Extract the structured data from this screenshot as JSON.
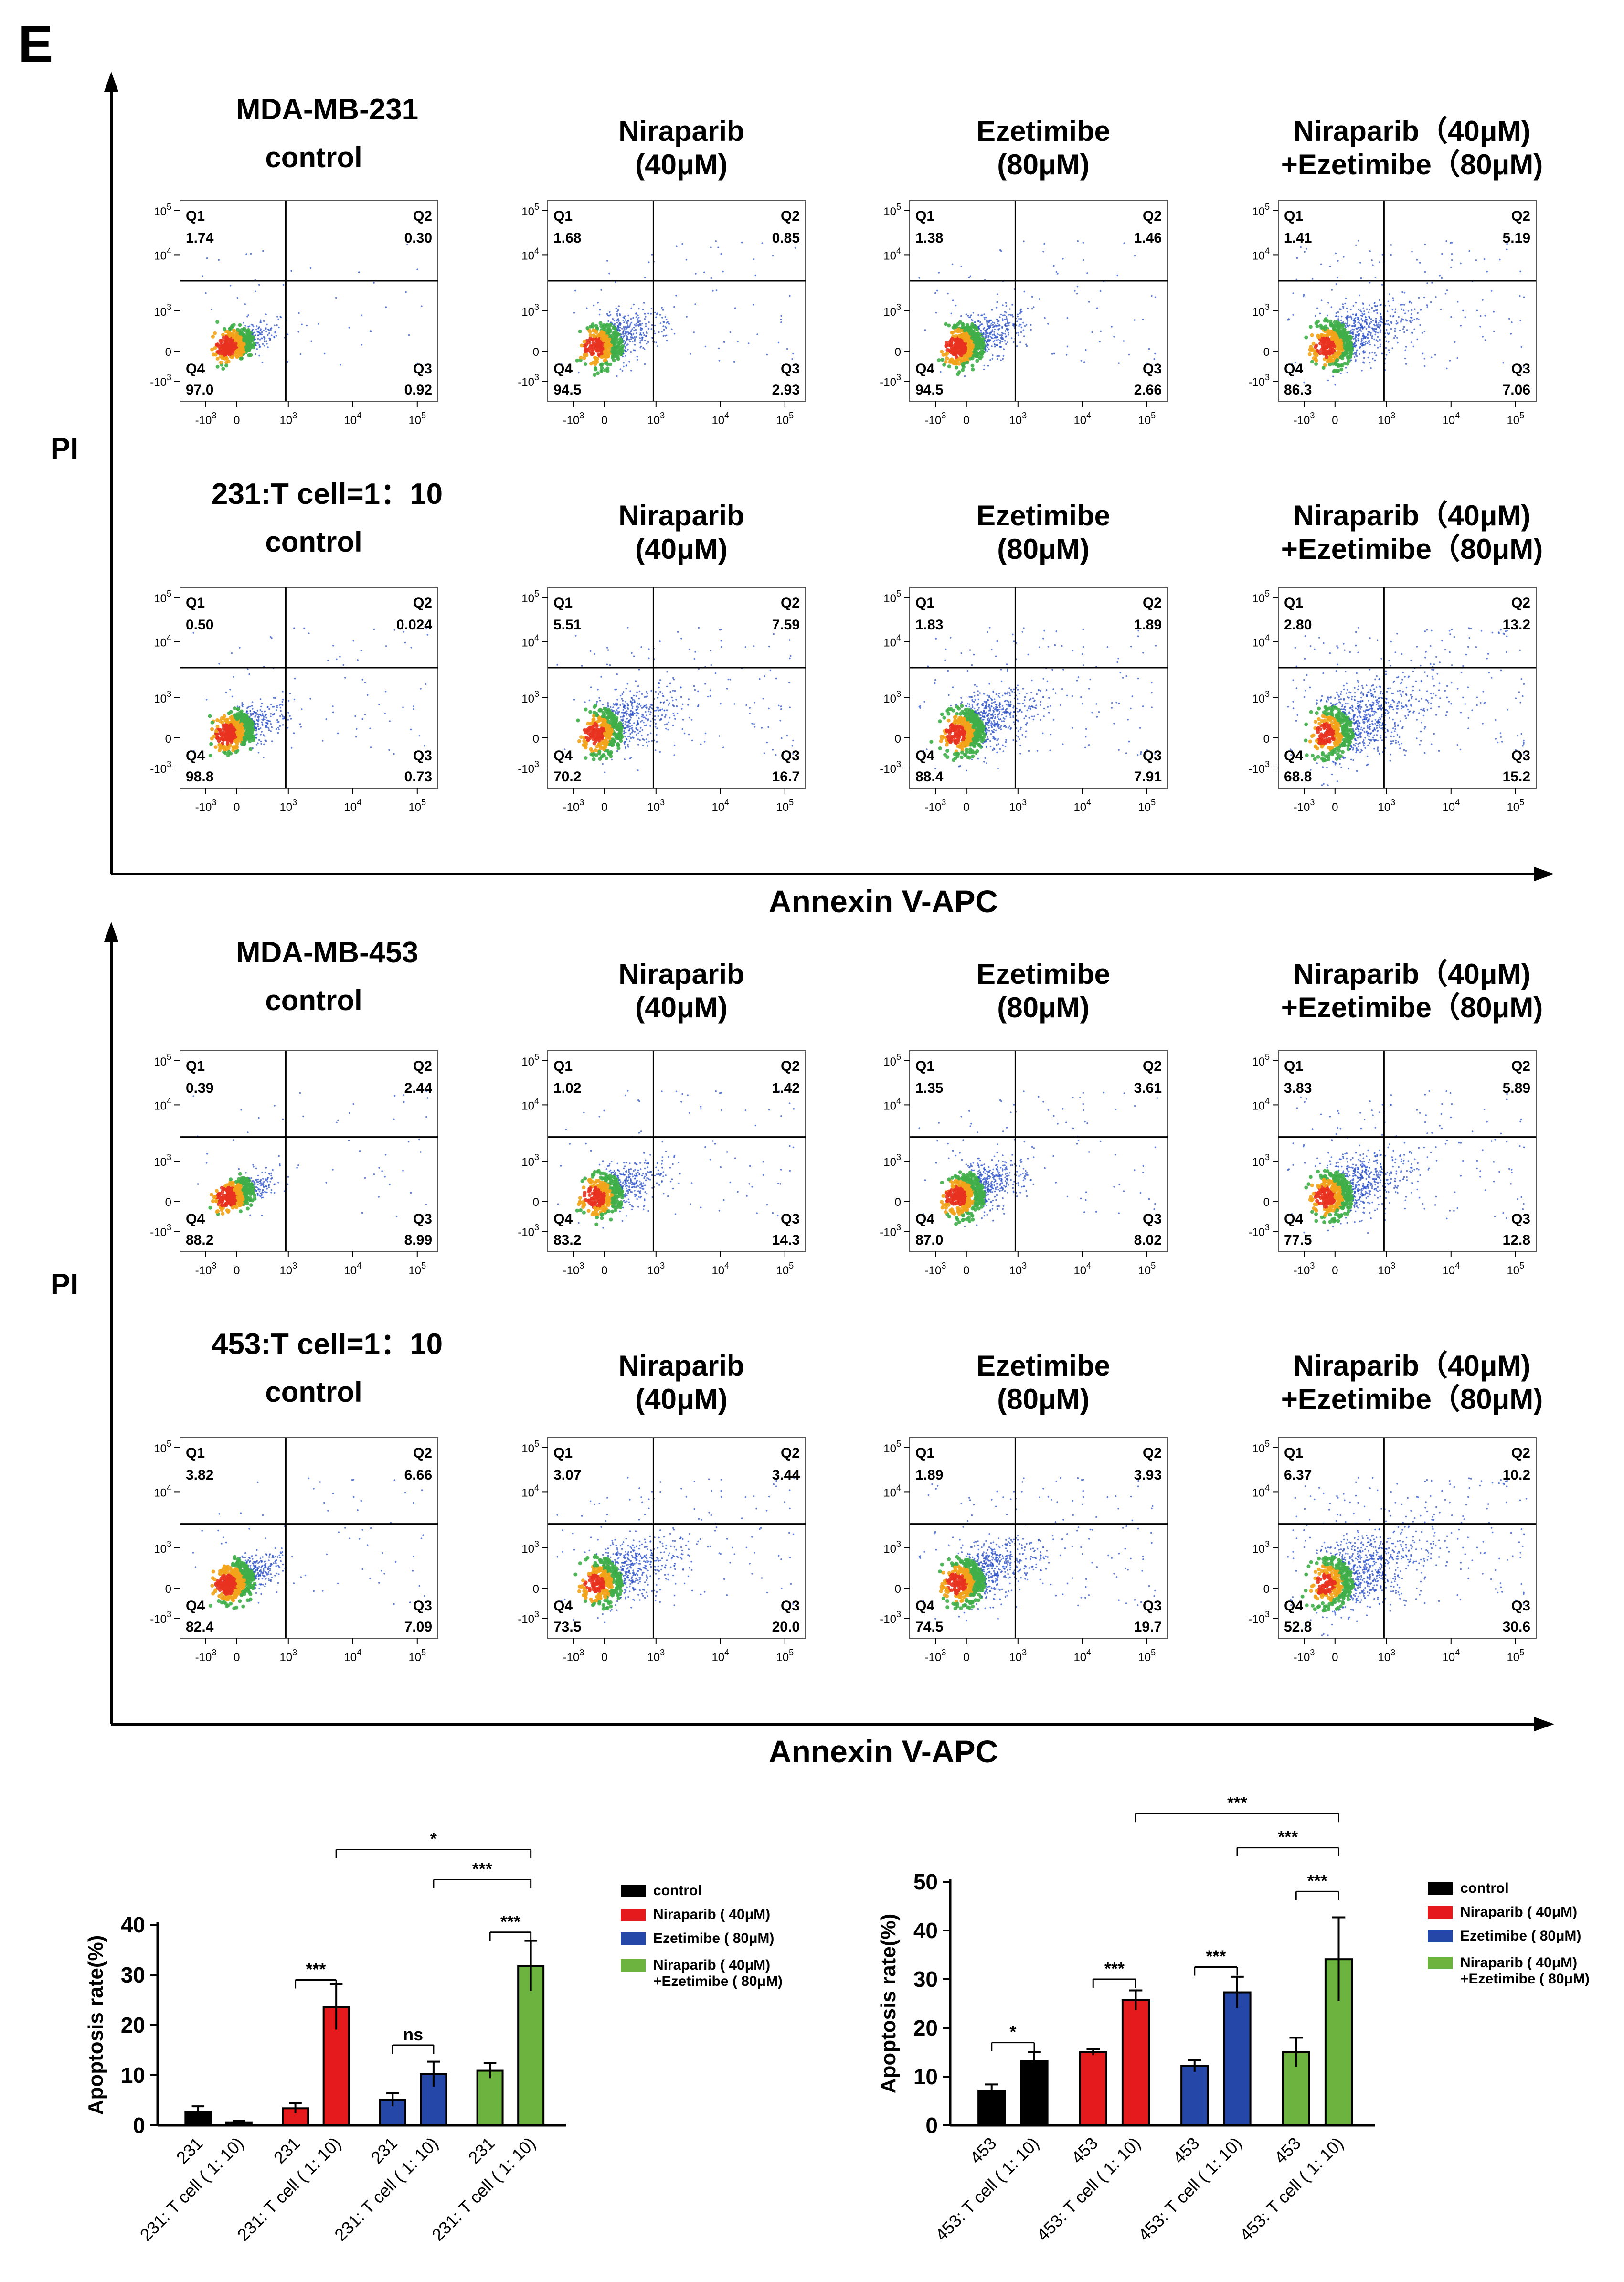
{
  "panel_label": "E",
  "colors": {
    "control": "#000000",
    "niraparib": "#e41a1c",
    "ezetimibe": "#2547a8",
    "combo": "#6cb33f",
    "axis": "#000000",
    "density_high": "#e8321f",
    "density_mid": "#f2a31a",
    "density_green": "#3fae49",
    "density_low": "#2c52c8"
  },
  "sections": [
    {
      "ylabel": "PI",
      "xlabel": "Annexin V-APC",
      "rows": [
        {
          "row_label": "MDA-MB-231",
          "titles": [
            [
              "control"
            ],
            [
              "Niraparib",
              "(40μM)"
            ],
            [
              "Ezetimibe",
              "(80μM)"
            ],
            [
              "Niraparib（40μM)",
              "+Ezetimibe（80μM)"
            ]
          ],
          "quadrants": [
            [
              "1.74",
              "0.30",
              "0.92",
              "97.0"
            ],
            [
              "1.68",
              "0.85",
              "2.93",
              "94.5"
            ],
            [
              "1.38",
              "1.46",
              "2.66",
              "94.5"
            ],
            [
              "1.41",
              "5.19",
              "7.06",
              "86.3"
            ]
          ]
        },
        {
          "row_label": "231:T cell=1：10",
          "titles": [
            [
              "control"
            ],
            [
              "Niraparib",
              "(40μM)"
            ],
            [
              "Ezetimibe",
              "(80μM)"
            ],
            [
              "Niraparib（40μM)",
              "+Ezetimibe（80μM)"
            ]
          ],
          "quadrants": [
            [
              "0.50",
              "0.024",
              "0.73",
              "98.8"
            ],
            [
              "5.51",
              "7.59",
              "16.7",
              "70.2"
            ],
            [
              "1.83",
              "1.89",
              "7.91",
              "88.4"
            ],
            [
              "2.80",
              "13.2",
              "15.2",
              "68.8"
            ]
          ]
        }
      ]
    },
    {
      "ylabel": "PI",
      "xlabel": "Annexin V-APC",
      "rows": [
        {
          "row_label": "MDA-MB-453",
          "titles": [
            [
              "control"
            ],
            [
              "Niraparib",
              "(40μM)"
            ],
            [
              "Ezetimibe",
              "(80μM)"
            ],
            [
              "Niraparib（40μM)",
              "+Ezetimibe（80μM)"
            ]
          ],
          "quadrants": [
            [
              "0.39",
              "2.44",
              "8.99",
              "88.2"
            ],
            [
              "1.02",
              "1.42",
              "14.3",
              "83.2"
            ],
            [
              "1.35",
              "3.61",
              "8.02",
              "87.0"
            ],
            [
              "3.83",
              "5.89",
              "12.8",
              "77.5"
            ]
          ]
        },
        {
          "row_label": "453:T cell=1：10",
          "titles": [
            [
              "control"
            ],
            [
              "Niraparib",
              "(40μM)"
            ],
            [
              "Ezetimibe",
              "(80μM)"
            ],
            [
              "Niraparib（40μM)",
              "+Ezetimibe（80μM)"
            ]
          ],
          "quadrants": [
            [
              "3.82",
              "6.66",
              "7.09",
              "82.4"
            ],
            [
              "3.07",
              "3.44",
              "20.0",
              "73.5"
            ],
            [
              "1.89",
              "3.93",
              "19.7",
              "74.5"
            ],
            [
              "6.37",
              "10.2",
              "30.6",
              "52.8"
            ]
          ]
        }
      ]
    }
  ],
  "flow_axis": {
    "quadrant_names": [
      "Q1",
      "Q2",
      "Q3",
      "Q4"
    ],
    "y_ticks": [
      {
        "base": "10",
        "exp": "5"
      },
      {
        "base": "10",
        "exp": "4"
      },
      {
        "base": "10",
        "exp": "3"
      },
      {
        "base": "0",
        "exp": ""
      },
      {
        "base": "-10",
        "exp": "3"
      }
    ],
    "x_ticks": [
      {
        "base": "-10",
        "exp": "3"
      },
      {
        "base": "0",
        "exp": ""
      },
      {
        "base": "10",
        "exp": "3"
      },
      {
        "base": "10",
        "exp": "4"
      },
      {
        "base": "10",
        "exp": "5"
      }
    ]
  },
  "chart_data": [
    {
      "type": "bar",
      "ylabel": "Apoptosis rate(%)",
      "ylim": [
        0,
        40
      ],
      "yticks": [
        0,
        10,
        20,
        30,
        40
      ],
      "categories": [
        "231",
        "231: T cell ( 1: 10)",
        "231",
        "231: T cell ( 1: 10)",
        "231",
        "231: T cell ( 1: 10)",
        "231",
        "231: T cell ( 1: 10)"
      ],
      "values": [
        2.7,
        0.6,
        3.4,
        23.6,
        5.1,
        10.2,
        10.9,
        31.8
      ],
      "errors": [
        1.1,
        0.3,
        1.0,
        4.5,
        1.3,
        2.5,
        1.5,
        5.0
      ],
      "series_index": [
        0,
        0,
        1,
        1,
        2,
        2,
        3,
        3
      ],
      "legend": [
        "control",
        "Niraparib ( 40μM)",
        "Ezetimibe ( 80μM)",
        "Niraparib ( 40μM)\n+Ezetimibe ( 80μM)"
      ],
      "comparisons": [
        {
          "a": 2,
          "b": 3,
          "label": "***",
          "y": 29
        },
        {
          "a": 4,
          "b": 5,
          "label": "ns",
          "y": 16
        },
        {
          "a": 6,
          "b": 7,
          "label": "***",
          "y": 38.5
        },
        {
          "a": 5,
          "b": 7,
          "label": "***",
          "y": 49
        },
        {
          "a": 3,
          "b": 7,
          "label": "*",
          "y": 55
        }
      ]
    },
    {
      "type": "bar",
      "ylabel": "Apoptosis rate(%)",
      "ylim": [
        0,
        50
      ],
      "yticks": [
        0,
        10,
        20,
        30,
        40,
        50
      ],
      "categories": [
        "453",
        "453: T cell ( 1: 10)",
        "453",
        "453: T cell ( 1: 10)",
        "453",
        "453: T cell ( 1: 10)",
        "453",
        "453: T cell ( 1: 10)"
      ],
      "values": [
        7.1,
        13.2,
        15.0,
        25.7,
        12.2,
        27.3,
        15.0,
        34.1
      ],
      "errors": [
        1.3,
        1.8,
        0.6,
        2.0,
        1.2,
        3.2,
        3.0,
        8.6
      ],
      "series_index": [
        0,
        0,
        1,
        1,
        2,
        2,
        3,
        3
      ],
      "legend": [
        "control",
        "Niraparib ( 40μM)",
        "Ezetimibe ( 80μM)",
        "Niraparib ( 40μM)\n+Ezetimibe ( 80μM)"
      ],
      "comparisons": [
        {
          "a": 0,
          "b": 1,
          "label": "*",
          "y": 17
        },
        {
          "a": 2,
          "b": 3,
          "label": "***",
          "y": 30
        },
        {
          "a": 4,
          "b": 5,
          "label": "***",
          "y": 32.5
        },
        {
          "a": 6,
          "b": 7,
          "label": "***",
          "y": 48
        },
        {
          "a": 5,
          "b": 7,
          "label": "***",
          "y": 57
        },
        {
          "a": 3,
          "b": 7,
          "label": "***",
          "y": 64
        }
      ]
    }
  ]
}
